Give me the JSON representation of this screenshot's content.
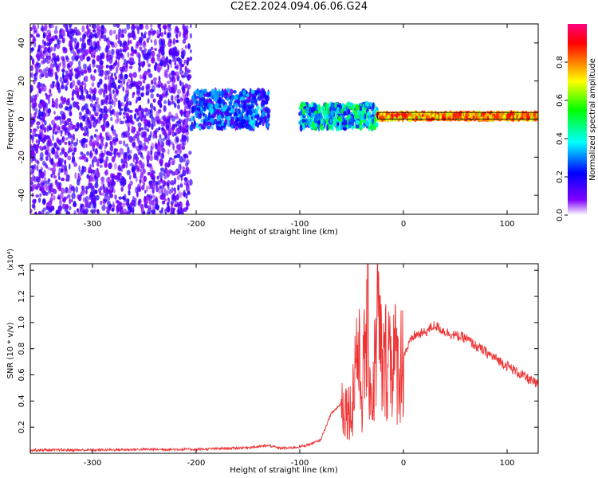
{
  "title": "C2E2.2024.094.06.06.G24",
  "chart_data": [
    {
      "type": "heatmap",
      "title": "C2E2.2024.094.06.06.G24",
      "xlabel": "Height of straight line (km)",
      "ylabel": "Frequency (Hz)",
      "xlim": [
        -360,
        130
      ],
      "ylim": [
        -50,
        50
      ],
      "x_ticks": [
        -300,
        -200,
        -100,
        0,
        100
      ],
      "y_ticks": [
        -40,
        -20,
        0,
        20,
        40
      ],
      "colorbar": {
        "label": "Normalized spectral amplitude",
        "range": [
          0.0,
          1.0
        ],
        "ticks": [
          0.0,
          0.2,
          0.4,
          0.6,
          0.8
        ],
        "colors": [
          "#ffffff",
          "#8000ff",
          "#0000ff",
          "#00ffff",
          "#00ff00",
          "#ffff00",
          "#ff8000",
          "#ff0000",
          "#ff0080"
        ]
      },
      "features": [
        {
          "x_range": [
            -360,
            -205
          ],
          "freq_range": [
            -50,
            50
          ],
          "amplitude": 0.15
        },
        {
          "x_range": [
            -205,
            -130
          ],
          "freq_range": [
            -5,
            15
          ],
          "amplitude": 0.3
        },
        {
          "x_range": [
            -100,
            -25
          ],
          "freq_range": [
            -5,
            8
          ],
          "amplitude": 0.45
        },
        {
          "x_range": [
            -25,
            130
          ],
          "freq_range": [
            0,
            3
          ],
          "amplitude": 0.9
        }
      ],
      "grid": false
    },
    {
      "type": "line",
      "xlabel": "Height of straight line (km)",
      "ylabel": "SNR (10 * v/v)",
      "y_multiplier": "(x10⁴)",
      "xlim": [
        -360,
        130
      ],
      "ylim": [
        0,
        1.45
      ],
      "x_ticks": [
        -300,
        -200,
        -100,
        0,
        100
      ],
      "y_ticks": [
        0.2,
        0.4,
        0.6,
        0.8,
        1.0,
        1.2,
        1.4
      ],
      "color": "#ee3333",
      "series": [
        {
          "x": [
            -360,
            -300,
            -250,
            -200,
            -180,
            -160,
            -140,
            -130,
            -120,
            -110,
            -100,
            -90,
            -80,
            -70,
            -60,
            -50,
            -45,
            -40,
            -35,
            -30,
            -25,
            -20,
            -15,
            -10,
            -5,
            0,
            10,
            20,
            30,
            40,
            50,
            60,
            70,
            80,
            90,
            100,
            110,
            120,
            130
          ],
          "y": [
            0.025,
            0.025,
            0.03,
            0.03,
            0.035,
            0.04,
            0.05,
            0.06,
            0.04,
            0.04,
            0.05,
            0.07,
            0.1,
            0.3,
            0.38,
            0.32,
            0.85,
            0.45,
            1.0,
            0.35,
            1.05,
            0.6,
            0.8,
            0.75,
            0.65,
            0.75,
            0.9,
            0.92,
            0.98,
            0.93,
            0.9,
            0.88,
            0.82,
            0.77,
            0.72,
            0.67,
            0.62,
            0.57,
            0.52
          ]
        }
      ],
      "grid": false
    }
  ]
}
